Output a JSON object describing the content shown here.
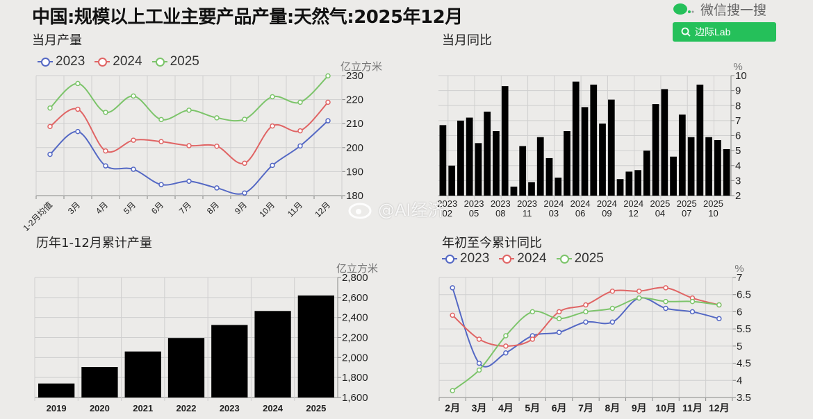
{
  "title": "中国:规模以上工业主要产品产量:天然气:2025年12月",
  "header": {
    "wechat_search_label": "微信搜一搜",
    "search_button_label": "边际Lab",
    "icons": [
      "wechat-icon",
      "search-icon"
    ],
    "accent_color": "#25c05a"
  },
  "watermark": "@AI经济",
  "series_colors": {
    "2023": "#5468c4",
    "2024": "#e06464",
    "2025": "#7cc46a",
    "bar": "#000000"
  },
  "chart_data": [
    {
      "type": "line",
      "title": "当月产量",
      "unit": "亿立方米",
      "categories": [
        "1-2月均值",
        "3月",
        "4月",
        "5月",
        "6月",
        "7月",
        "8月",
        "9月",
        "10月",
        "11月",
        "12月"
      ],
      "ylim": [
        180,
        230
      ],
      "yticks": [
        180,
        190,
        200,
        210,
        220,
        230
      ],
      "grid": true,
      "legend": "top-left",
      "series": [
        {
          "name": "2023",
          "values": [
            197.2,
            206.7,
            192.4,
            191.0,
            184.6,
            186.0,
            183.2,
            181.1,
            192.6,
            200.7,
            211.2
          ]
        },
        {
          "name": "2024",
          "values": [
            208.8,
            216.0,
            198.6,
            203.1,
            202.5,
            200.8,
            200.6,
            193.5,
            209.0,
            207.0,
            218.9
          ]
        },
        {
          "name": "2025",
          "values": [
            216.5,
            226.7,
            214.7,
            221.5,
            211.7,
            215.6,
            212.4,
            211.8,
            221.2,
            218.9,
            229.9
          ]
        }
      ]
    },
    {
      "type": "bar",
      "title": "当月同比",
      "unit": "%",
      "categories": [
        "2023-02",
        "2023-03",
        "2023-04",
        "2023-05",
        "2023-06",
        "2023-07",
        "2023-08",
        "2023-09",
        "2023-10",
        "2023-11",
        "2023-12",
        "2024-02",
        "2024-03",
        "2024-04",
        "2024-05",
        "2024-06",
        "2024-07",
        "2024-08",
        "2024-09",
        "2024-10",
        "2024-11",
        "2024-12",
        "2025-02",
        "2025-03",
        "2025-04",
        "2025-05",
        "2025-06",
        "2025-07",
        "2025-08",
        "2025-09",
        "2025-10",
        "2025-11",
        "2025-12"
      ],
      "tick_labels": [
        [
          "2023",
          "02"
        ],
        [
          "2023",
          "05"
        ],
        [
          "2023",
          "08"
        ],
        [
          "2023",
          "11"
        ],
        [
          "2024",
          "03"
        ],
        [
          "2024",
          "06"
        ],
        [
          "2024",
          "09"
        ],
        [
          "2024",
          "12"
        ],
        [
          "2025",
          "04"
        ],
        [
          "2025",
          "07"
        ],
        [
          "2025",
          "10"
        ]
      ],
      "values": [
        6.7,
        4.0,
        7.0,
        7.2,
        5.5,
        7.6,
        6.3,
        9.3,
        2.6,
        5.3,
        2.9,
        5.9,
        4.5,
        3.2,
        6.3,
        9.6,
        7.9,
        9.4,
        6.8,
        8.4,
        3.1,
        3.6,
        3.7,
        5.0,
        8.1,
        9.1,
        4.6,
        7.4,
        5.9,
        9.4,
        5.9,
        5.7,
        5.1
      ],
      "ylim": [
        2,
        10
      ],
      "yticks": [
        2,
        3,
        4,
        5,
        6,
        7,
        8,
        9,
        10
      ],
      "grid": true
    },
    {
      "type": "bar",
      "title": "历年1-12月累计产量",
      "unit": "亿立方米",
      "categories": [
        "2019",
        "2020",
        "2021",
        "2022",
        "2023",
        "2024",
        "2025"
      ],
      "values": [
        1740,
        1905,
        2060,
        2195,
        2325,
        2465,
        2620
      ],
      "ylim": [
        1600,
        2800
      ],
      "yticks": [
        "1,600",
        "1,800",
        "2,000",
        "2,200",
        "2,400",
        "2,600",
        "2,800"
      ],
      "grid": true
    },
    {
      "type": "line",
      "title": "年初至今累计同比",
      "unit": "%",
      "categories": [
        "2月",
        "3月",
        "4月",
        "5月",
        "6月",
        "7月",
        "8月",
        "9月",
        "10月",
        "11月",
        "12月"
      ],
      "ylim": [
        3.5,
        7
      ],
      "yticks": [
        "3.5",
        "4",
        "4.5",
        "5",
        "5.5",
        "6",
        "6.5",
        "7"
      ],
      "grid": true,
      "legend": "top-left",
      "series": [
        {
          "name": "2023",
          "values": [
            6.7,
            4.5,
            4.8,
            5.3,
            5.4,
            5.7,
            5.7,
            6.4,
            6.1,
            6.0,
            5.8
          ]
        },
        {
          "name": "2024",
          "values": [
            5.9,
            5.2,
            5.0,
            5.2,
            6.0,
            6.2,
            6.6,
            6.6,
            6.7,
            6.4,
            6.2
          ]
        },
        {
          "name": "2025",
          "values": [
            3.7,
            4.3,
            5.3,
            6.0,
            5.8,
            6.0,
            6.1,
            6.4,
            6.3,
            6.3,
            6.2
          ]
        }
      ]
    }
  ]
}
